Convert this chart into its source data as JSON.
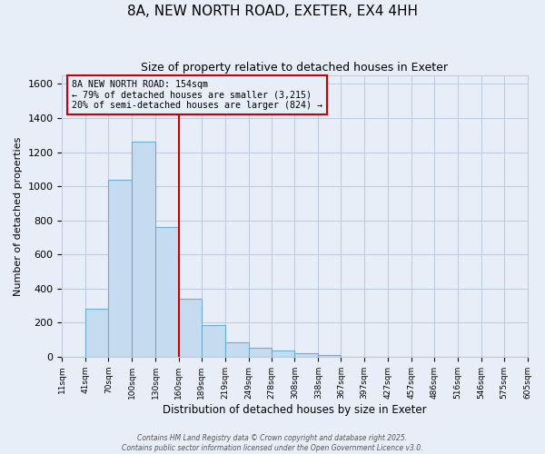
{
  "title": "8A, NEW NORTH ROAD, EXETER, EX4 4HH",
  "subtitle": "Size of property relative to detached houses in Exeter",
  "xlabel": "Distribution of detached houses by size in Exeter",
  "ylabel": "Number of detached properties",
  "bar_values": [
    0,
    280,
    1040,
    1260,
    760,
    340,
    185,
    85,
    52,
    35,
    20,
    10,
    0,
    0,
    0,
    0,
    0,
    0,
    0,
    0
  ],
  "bin_edges": [
    11,
    41,
    70,
    100,
    130,
    160,
    189,
    219,
    249,
    278,
    308,
    338,
    367,
    397,
    427,
    457,
    486,
    516,
    546,
    575,
    605
  ],
  "tick_labels": [
    "11sqm",
    "41sqm",
    "70sqm",
    "100sqm",
    "130sqm",
    "160sqm",
    "189sqm",
    "219sqm",
    "249sqm",
    "278sqm",
    "308sqm",
    "338sqm",
    "367sqm",
    "397sqm",
    "427sqm",
    "457sqm",
    "486sqm",
    "516sqm",
    "546sqm",
    "575sqm",
    "605sqm"
  ],
  "bar_color": "#c5dcf0",
  "bar_edge_color": "#6aaed6",
  "background_color": "#e8eef8",
  "grid_color": "#c0cce0",
  "vline_x": 160,
  "vline_color": "#cc0000",
  "ylim": [
    0,
    1650
  ],
  "yticks": [
    0,
    200,
    400,
    600,
    800,
    1000,
    1200,
    1400,
    1600
  ],
  "annotation_title": "8A NEW NORTH ROAD: 154sqm",
  "annotation_line1": "← 79% of detached houses are smaller (3,215)",
  "annotation_line2": "20% of semi-detached houses are larger (824) →",
  "annotation_box_edge": "#cc0000",
  "footer1": "Contains HM Land Registry data © Crown copyright and database right 2025.",
  "footer2": "Contains public sector information licensed under the Open Government Licence v3.0."
}
